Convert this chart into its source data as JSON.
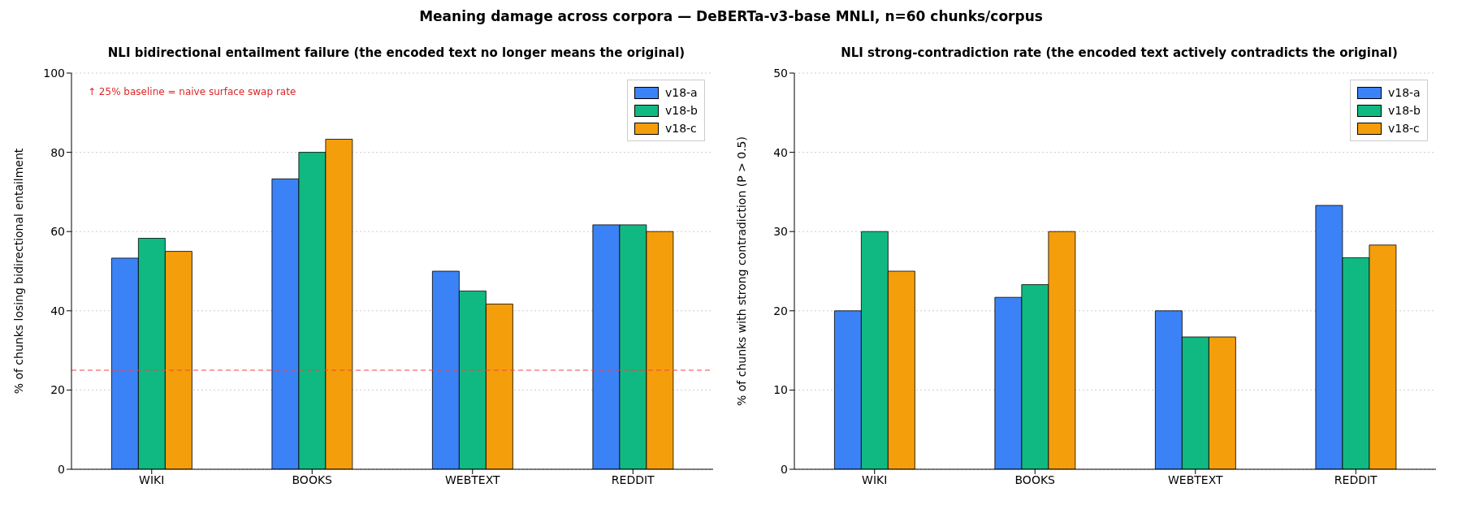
{
  "chart_data": [
    {
      "type": "bar",
      "title": "NLI bidirectional entailment failure  (the encoded text no longer means the original)",
      "ylabel": "% of chunks losing bidirectional entailment",
      "annotations": [
        "Meaning damage across corpora — DeBERTa-v3-base MNLI, n=60 chunks/corpus",
        "↑ 25% baseline = naive surface swap rate"
      ],
      "categories": [
        "WIKI",
        "BOOKS",
        "WEBTEXT",
        "REDDIT"
      ],
      "series": [
        {
          "name": "v18-a",
          "color": "#3b82f6",
          "values": [
            53.3,
            73.3,
            50.0,
            61.7
          ]
        },
        {
          "name": "v18-b",
          "color": "#10b981",
          "values": [
            58.3,
            80.0,
            45.0,
            61.7
          ]
        },
        {
          "name": "v18-c",
          "color": "#f59e0b",
          "values": [
            55.0,
            83.3,
            41.7,
            60.0
          ]
        }
      ],
      "ylim": [
        0,
        100
      ],
      "yticks": [
        0,
        20,
        40,
        60,
        80,
        100
      ],
      "grid": "y",
      "legend": "top right",
      "ref_lines": [
        {
          "axis": "y",
          "value": 25,
          "color": "#ef4444",
          "line_style": "dashed"
        }
      ]
    },
    {
      "type": "bar",
      "title": "NLI strong-contradiction rate  (the encoded text actively contradicts the original)",
      "ylabel": "% of chunks with strong contradiction (P > 0.5)",
      "categories": [
        "WIKI",
        "BOOKS",
        "WEBTEXT",
        "REDDIT"
      ],
      "series": [
        {
          "name": "v18-a",
          "color": "#3b82f6",
          "values": [
            20.0,
            21.7,
            20.0,
            33.3
          ]
        },
        {
          "name": "v18-b",
          "color": "#10b981",
          "values": [
            30.0,
            23.3,
            16.7,
            26.7
          ]
        },
        {
          "name": "v18-c",
          "color": "#f59e0b",
          "values": [
            25.0,
            30.0,
            16.7,
            28.3
          ]
        }
      ],
      "ylim": [
        0,
        50
      ],
      "yticks": [
        0,
        10,
        20,
        30,
        40,
        50
      ],
      "grid": "y",
      "legend": "top right"
    }
  ]
}
